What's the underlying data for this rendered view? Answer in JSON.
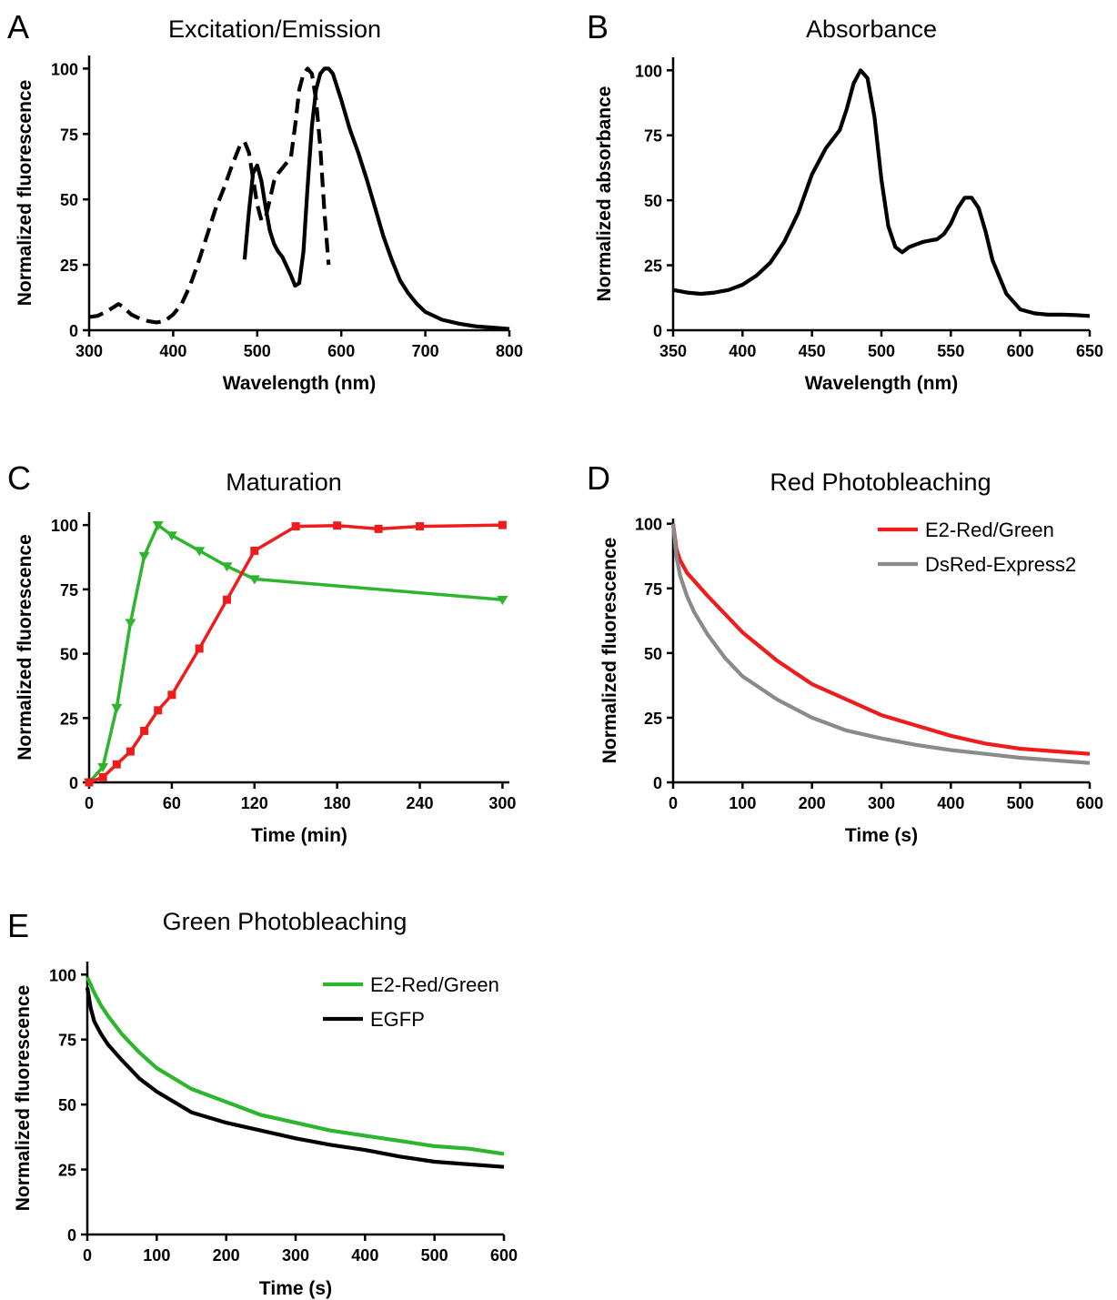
{
  "colors": {
    "axis": "#000000",
    "red": "#ee1c1c",
    "green": "#2db52d",
    "gray": "#8a8a8a",
    "black": "#000000"
  },
  "chart_data": [
    {
      "id": "A",
      "panel_letter": "A",
      "type": "line",
      "title": "Excitation/Emission",
      "xlabel": "Wavelength (nm)",
      "ylabel": "Normalized fluorescence",
      "xlim": [
        300,
        800
      ],
      "ylim": [
        0,
        105
      ],
      "xticks": [
        300,
        400,
        500,
        600,
        700,
        800
      ],
      "yticks": [
        0,
        25,
        50,
        75,
        100
      ],
      "grid": false,
      "series": [
        {
          "style": "dashed",
          "color": "#000000",
          "x": [
            300,
            310,
            320,
            330,
            335,
            340,
            350,
            360,
            370,
            380,
            390,
            400,
            410,
            420,
            430,
            440,
            450,
            460,
            470,
            480,
            485,
            490,
            495,
            500,
            505,
            510,
            515,
            520,
            525,
            530,
            540,
            545,
            550,
            555,
            560,
            565,
            570,
            575,
            580,
            585
          ],
          "y": [
            5,
            5.5,
            7,
            9,
            10,
            9,
            6,
            4.5,
            3.5,
            3,
            3.5,
            6,
            10,
            17,
            26,
            36,
            46,
            54,
            63,
            71,
            72,
            68,
            58,
            48,
            42,
            43,
            50,
            57,
            60,
            62,
            66,
            78,
            92,
            98,
            100,
            98,
            88,
            70,
            45,
            25
          ]
        },
        {
          "style": "solid",
          "color": "#000000",
          "x": [
            485,
            490,
            495,
            500,
            505,
            510,
            515,
            520,
            525,
            530,
            540,
            545,
            550,
            555,
            560,
            565,
            570,
            575,
            580,
            585,
            590,
            600,
            610,
            620,
            630,
            640,
            650,
            660,
            670,
            680,
            690,
            700,
            720,
            740,
            760,
            780,
            800
          ],
          "y": [
            27,
            45,
            60,
            63,
            57,
            47,
            38,
            33,
            30,
            28,
            21,
            17,
            18,
            30,
            55,
            78,
            92,
            98,
            100,
            100,
            98,
            88,
            77,
            68,
            58,
            47,
            36,
            27,
            19,
            14,
            10,
            7,
            4,
            2.5,
            1.5,
            1,
            0.5
          ]
        }
      ]
    },
    {
      "id": "B",
      "panel_letter": "B",
      "type": "line",
      "title": "Absorbance",
      "xlabel": "Wavelength (nm)",
      "ylabel": "Normalized absorbance",
      "xlim": [
        350,
        650
      ],
      "ylim": [
        0,
        105
      ],
      "xticks": [
        350,
        400,
        450,
        500,
        550,
        600,
        650
      ],
      "yticks": [
        0,
        25,
        50,
        75,
        100
      ],
      "grid": false,
      "series": [
        {
          "style": "solid",
          "color": "#000000",
          "x": [
            350,
            360,
            370,
            380,
            390,
            400,
            410,
            420,
            430,
            440,
            450,
            460,
            470,
            475,
            480,
            485,
            490,
            495,
            500,
            505,
            510,
            515,
            520,
            525,
            530,
            540,
            545,
            550,
            555,
            560,
            565,
            570,
            575,
            580,
            590,
            600,
            610,
            620,
            630,
            640,
            650
          ],
          "y": [
            15.5,
            14.5,
            14,
            14.5,
            15.5,
            17.5,
            21,
            26,
            34,
            45,
            60,
            70,
            77,
            85,
            95,
            100,
            97,
            82,
            58,
            40,
            32,
            30,
            32,
            33,
            34,
            35,
            37,
            41,
            47,
            51,
            51,
            47,
            38,
            27,
            14,
            8,
            6.5,
            6,
            6,
            5.8,
            5.5
          ]
        }
      ]
    },
    {
      "id": "C",
      "panel_letter": "C",
      "type": "line",
      "title": "Maturation",
      "xlabel": "Time (min)",
      "ylabel": "Normalized fluorescence",
      "xlim": [
        0,
        305
      ],
      "ylim": [
        0,
        105
      ],
      "xticks": [
        0,
        60,
        120,
        180,
        240,
        300
      ],
      "yticks": [
        0,
        25,
        50,
        75,
        100
      ],
      "grid": false,
      "series": [
        {
          "style": "solid",
          "color": "#2db52d",
          "marker": "triangle-down",
          "x": [
            0,
            10,
            20,
            30,
            40,
            50,
            60,
            80,
            100,
            120,
            300
          ],
          "y": [
            0,
            6,
            29,
            62,
            88,
            100,
            96,
            90,
            84,
            79,
            71
          ]
        },
        {
          "style": "solid",
          "color": "#ee1c1c",
          "marker": "square",
          "x": [
            0,
            10,
            20,
            30,
            40,
            50,
            60,
            80,
            100,
            120,
            150,
            180,
            210,
            240,
            300
          ],
          "y": [
            0,
            2,
            7,
            12,
            20,
            28,
            34,
            52,
            71,
            90,
            99.5,
            99.8,
            98.5,
            99.5,
            100
          ]
        }
      ]
    },
    {
      "id": "D",
      "panel_letter": "D",
      "type": "line",
      "title": "Red Photobleaching",
      "xlabel": "Time (s)",
      "ylabel": "Normalized fluorescence",
      "xlim": [
        0,
        600
      ],
      "ylim": [
        0,
        102
      ],
      "xticks": [
        0,
        100,
        200,
        300,
        400,
        500,
        600
      ],
      "yticks": [
        0,
        25,
        50,
        75,
        100
      ],
      "grid": false,
      "legend_position": "top-right",
      "series": [
        {
          "name": "E2-Red/Green",
          "style": "solid",
          "color": "#ee1c1c",
          "x": [
            0,
            5,
            10,
            20,
            30,
            50,
            75,
            100,
            150,
            200,
            250,
            300,
            350,
            400,
            450,
            500,
            550,
            600
          ],
          "y": [
            100,
            90,
            86,
            81,
            78,
            72,
            65,
            58,
            47,
            38,
            32,
            26,
            22,
            18,
            15,
            13,
            12,
            11
          ]
        },
        {
          "name": "DsRed-Express2",
          "style": "solid",
          "color": "#8a8a8a",
          "x": [
            0,
            5,
            10,
            20,
            30,
            50,
            75,
            100,
            150,
            200,
            250,
            300,
            350,
            400,
            450,
            500,
            550,
            600
          ],
          "y": [
            100,
            87,
            80,
            72,
            66,
            57,
            48,
            41,
            32,
            25,
            20,
            17,
            14.5,
            12.5,
            11,
            9.5,
            8.5,
            7.5
          ]
        }
      ]
    },
    {
      "id": "E",
      "panel_letter": "E",
      "type": "line",
      "title": "Green Photobleaching",
      "xlabel": "Time (s)",
      "ylabel": "Normalized fluorescence",
      "xlim": [
        0,
        600
      ],
      "ylim": [
        0,
        105
      ],
      "xticks": [
        0,
        100,
        200,
        300,
        400,
        500,
        600
      ],
      "yticks": [
        0,
        25,
        50,
        75,
        100
      ],
      "grid": false,
      "legend_position": "top-right",
      "series": [
        {
          "name": "E2-Red/Green",
          "style": "solid",
          "color": "#2db52d",
          "x": [
            0,
            5,
            10,
            20,
            30,
            50,
            75,
            100,
            150,
            200,
            250,
            300,
            350,
            400,
            450,
            500,
            550,
            600
          ],
          "y": [
            99,
            96,
            93,
            88,
            84,
            77,
            70,
            64,
            56,
            51,
            46,
            43,
            40,
            38,
            36,
            34,
            33,
            31
          ]
        },
        {
          "name": "EGFP",
          "style": "solid",
          "color": "#000000",
          "x": [
            0,
            5,
            10,
            20,
            30,
            50,
            75,
            100,
            150,
            200,
            250,
            300,
            350,
            400,
            450,
            500,
            550,
            600
          ],
          "y": [
            95,
            87,
            82,
            77,
            73,
            67,
            60,
            55,
            47,
            43,
            40,
            37,
            34.5,
            32.5,
            30,
            28,
            27,
            26
          ]
        }
      ]
    }
  ]
}
